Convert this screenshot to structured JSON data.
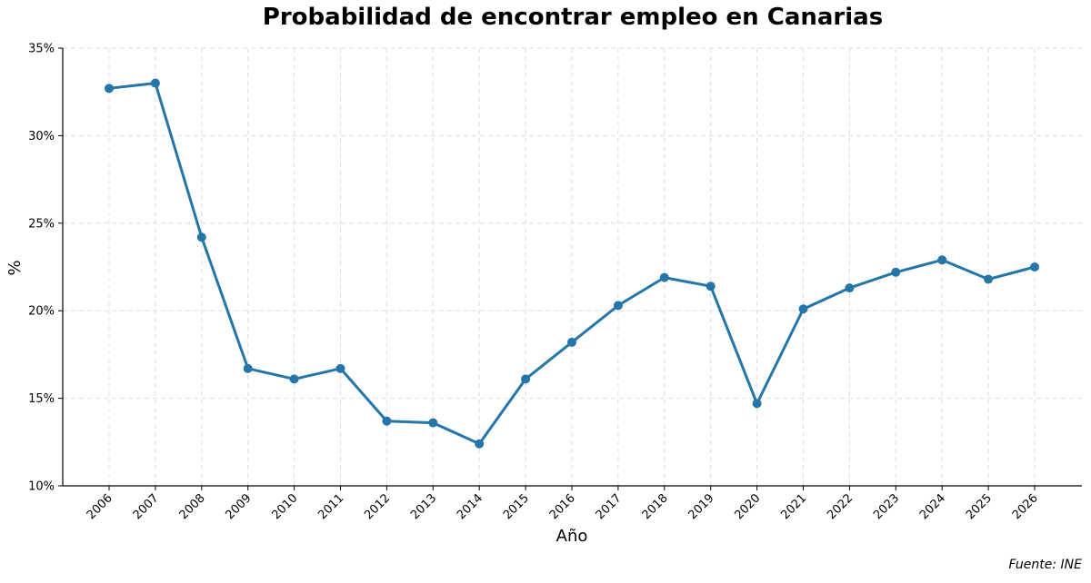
{
  "chart_data": {
    "type": "line",
    "title": "Probabilidad de encontrar empleo en Canarias",
    "xlabel": "Año",
    "ylabel": "%",
    "source": "Fuente: INE",
    "x": [
      "2006",
      "2007",
      "2008",
      "2009",
      "2010",
      "2011",
      "2012",
      "2013",
      "2014",
      "2015",
      "2016",
      "2017",
      "2018",
      "2019",
      "2020",
      "2021",
      "2022",
      "2023",
      "2024",
      "2025",
      "2026"
    ],
    "series": [
      {
        "values": [
          32.7,
          33.0,
          24.2,
          16.7,
          16.1,
          16.7,
          13.7,
          13.6,
          12.4,
          16.1,
          18.2,
          20.3,
          21.9,
          21.4,
          14.7,
          20.1,
          21.3,
          22.2,
          22.9,
          21.8,
          22.5
        ]
      }
    ],
    "ylim": [
      10,
      35
    ],
    "yticks": [
      10,
      15,
      20,
      25,
      30,
      35
    ],
    "ytick_labels": [
      "10%",
      "15%",
      "20%",
      "25%",
      "30%",
      "35%"
    ],
    "grid": true,
    "colors": {
      "line": "#2475a8",
      "grid": "#dddddd",
      "axis": "#000000"
    }
  }
}
